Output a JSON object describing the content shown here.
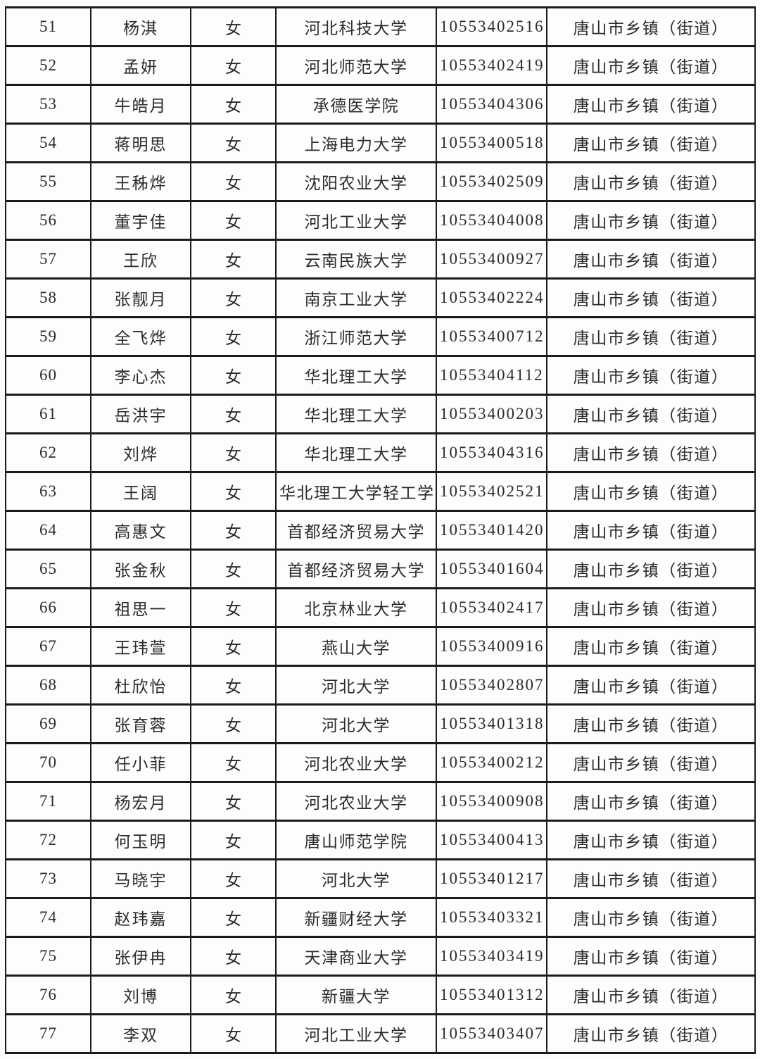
{
  "table": {
    "region_label": "唐山市乡镇（街道）",
    "rows": [
      {
        "no": "51",
        "name": "杨淇",
        "gender": "女",
        "school": "河北科技大学",
        "id": "10553402516",
        "region": "唐山市乡镇（街道）"
      },
      {
        "no": "52",
        "name": "孟妍",
        "gender": "女",
        "school": "河北师范大学",
        "id": "10553402419",
        "region": "唐山市乡镇（街道）"
      },
      {
        "no": "53",
        "name": "牛皓月",
        "gender": "女",
        "school": "承德医学院",
        "id": "10553404306",
        "region": "唐山市乡镇（街道）"
      },
      {
        "no": "54",
        "name": "蒋明思",
        "gender": "女",
        "school": "上海电力大学",
        "id": "10553400518",
        "region": "唐山市乡镇（街道）"
      },
      {
        "no": "55",
        "name": "王秭烨",
        "gender": "女",
        "school": "沈阳农业大学",
        "id": "10553402509",
        "region": "唐山市乡镇（街道）"
      },
      {
        "no": "56",
        "name": "董宇佳",
        "gender": "女",
        "school": "河北工业大学",
        "id": "10553404008",
        "region": "唐山市乡镇（街道）"
      },
      {
        "no": "57",
        "name": "王欣",
        "gender": "女",
        "school": "云南民族大学",
        "id": "10553400927",
        "region": "唐山市乡镇（街道）"
      },
      {
        "no": "58",
        "name": "张靓月",
        "gender": "女",
        "school": "南京工业大学",
        "id": "10553402224",
        "region": "唐山市乡镇（街道）"
      },
      {
        "no": "59",
        "name": "全飞烨",
        "gender": "女",
        "school": "浙江师范大学",
        "id": "10553400712",
        "region": "唐山市乡镇（街道）"
      },
      {
        "no": "60",
        "name": "李心杰",
        "gender": "女",
        "school": "华北理工大学",
        "id": "10553404112",
        "region": "唐山市乡镇（街道）"
      },
      {
        "no": "61",
        "name": "岳洪宇",
        "gender": "女",
        "school": "华北理工大学",
        "id": "10553400203",
        "region": "唐山市乡镇（街道）"
      },
      {
        "no": "62",
        "name": "刘烨",
        "gender": "女",
        "school": "华北理工大学",
        "id": "10553404316",
        "region": "唐山市乡镇（街道）"
      },
      {
        "no": "63",
        "name": "王阔",
        "gender": "女",
        "school": "华北理工大学轻工学院",
        "id": "10553402521",
        "region": "唐山市乡镇（街道）"
      },
      {
        "no": "64",
        "name": "高惠文",
        "gender": "女",
        "school": "首都经济贸易大学",
        "id": "10553401420",
        "region": "唐山市乡镇（街道）"
      },
      {
        "no": "65",
        "name": "张金秋",
        "gender": "女",
        "school": "首都经济贸易大学",
        "id": "10553401604",
        "region": "唐山市乡镇（街道）"
      },
      {
        "no": "66",
        "name": "祖思一",
        "gender": "女",
        "school": "北京林业大学",
        "id": "10553402417",
        "region": "唐山市乡镇（街道）"
      },
      {
        "no": "67",
        "name": "王玮萱",
        "gender": "女",
        "school": "燕山大学",
        "id": "10553400916",
        "region": "唐山市乡镇（街道）"
      },
      {
        "no": "68",
        "name": "杜欣怡",
        "gender": "女",
        "school": "河北大学",
        "id": "10553402807",
        "region": "唐山市乡镇（街道）"
      },
      {
        "no": "69",
        "name": "张育蓉",
        "gender": "女",
        "school": "河北大学",
        "id": "10553401318",
        "region": "唐山市乡镇（街道）"
      },
      {
        "no": "70",
        "name": "任小菲",
        "gender": "女",
        "school": "河北农业大学",
        "id": "10553400212",
        "region": "唐山市乡镇（街道）"
      },
      {
        "no": "71",
        "name": "杨宏月",
        "gender": "女",
        "school": "河北农业大学",
        "id": "10553400908",
        "region": "唐山市乡镇（街道）"
      },
      {
        "no": "72",
        "name": "何玉明",
        "gender": "女",
        "school": "唐山师范学院",
        "id": "10553400413",
        "region": "唐山市乡镇（街道）"
      },
      {
        "no": "73",
        "name": "马晓宇",
        "gender": "女",
        "school": "河北大学",
        "id": "10553401217",
        "region": "唐山市乡镇（街道）"
      },
      {
        "no": "74",
        "name": "赵玮嘉",
        "gender": "女",
        "school": "新疆财经大学",
        "id": "10553403321",
        "region": "唐山市乡镇（街道）"
      },
      {
        "no": "75",
        "name": "张伊冉",
        "gender": "女",
        "school": "天津商业大学",
        "id": "10553403419",
        "region": "唐山市乡镇（街道）"
      },
      {
        "no": "76",
        "name": "刘博",
        "gender": "女",
        "school": "新疆大学",
        "id": "10553401312",
        "region": "唐山市乡镇（街道）"
      },
      {
        "no": "77",
        "name": "李双",
        "gender": "女",
        "school": "河北工业大学",
        "id": "10553403407",
        "region": "唐山市乡镇（街道）"
      }
    ]
  }
}
